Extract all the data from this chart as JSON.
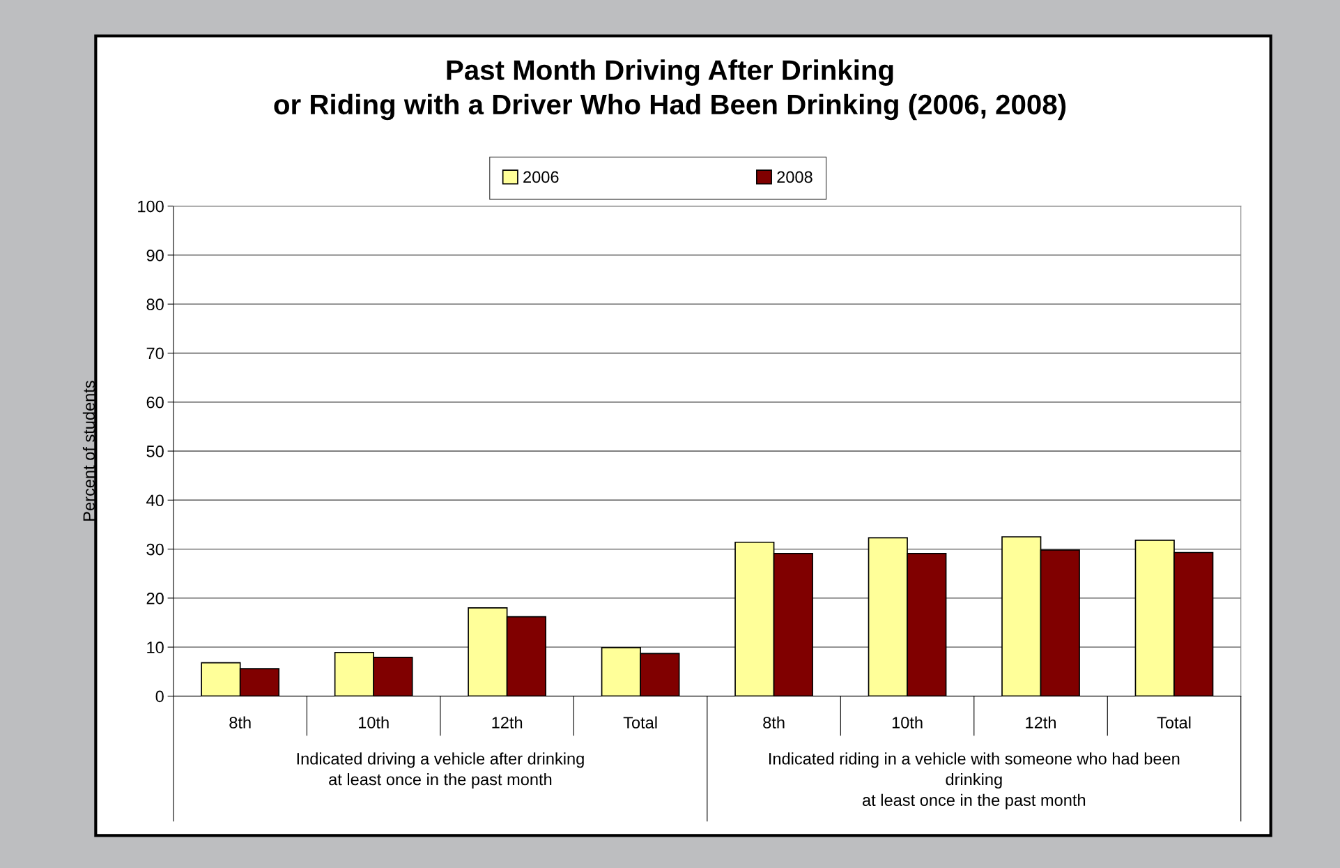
{
  "chart_data": {
    "type": "bar",
    "title": "Past Month Driving After Drinking\nor Riding with a Driver Who Had Been Drinking (2006, 2008)",
    "ylabel": "Percent of students",
    "categories": [
      "8th",
      "10th",
      "12th",
      "Total",
      "8th",
      "10th",
      "12th",
      "Total"
    ],
    "series": [
      {
        "name": "2006",
        "color": "#ffff99",
        "values": [
          6.8,
          8.9,
          18.0,
          9.9,
          31.4,
          32.3,
          32.5,
          31.8
        ]
      },
      {
        "name": "2008",
        "color": "#800000",
        "values": [
          5.6,
          7.9,
          16.2,
          8.7,
          29.1,
          29.1,
          29.8,
          29.3
        ]
      }
    ],
    "ylim": [
      0,
      100
    ],
    "yticks": [
      0,
      10,
      20,
      30,
      40,
      50,
      60,
      70,
      80,
      90,
      100
    ],
    "grid": "y",
    "legend": "top",
    "annotations": [
      "Indicated driving a vehicle after drinking\nat least once in the past month",
      "Indicated riding in a vehicle with someone who had been\ndrinking\nat least once in the past month"
    ]
  }
}
